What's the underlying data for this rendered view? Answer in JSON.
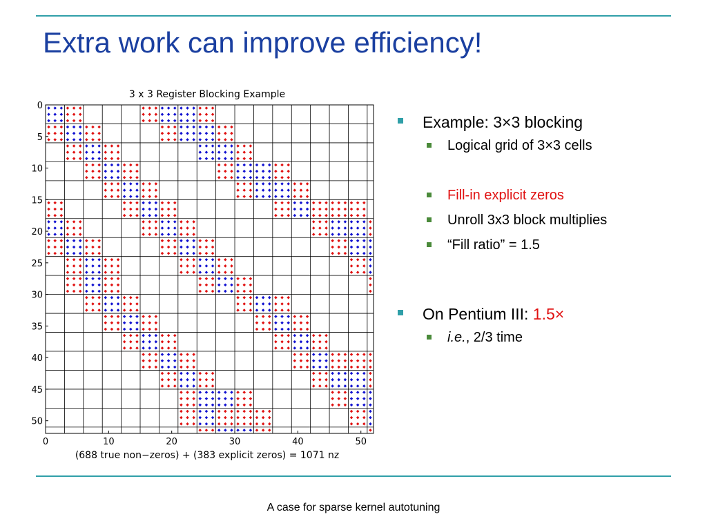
{
  "slide": {
    "title": "Extra work can improve efficiency!",
    "footer": "A case for sparse kernel autotuning"
  },
  "bullets": [
    {
      "text": "Example: 3×3 blocking",
      "sub": [
        {
          "text": "Logical grid of 3×3 cells",
          "color": "#000000"
        },
        {
          "text": "",
          "color": "#000000"
        },
        {
          "text": "Fill-in explicit zeros",
          "color": "#e01010"
        },
        {
          "text": "Unroll 3x3 block multiplies",
          "color": "#000000"
        },
        {
          "text": "“Fill ratio” = 1.5",
          "color": "#000000"
        }
      ]
    },
    {
      "text_before": "On Pentium III: ",
      "highlight": "1.5×",
      "sub_italic": "i.e.",
      "sub_rest": ", 2/3 time"
    }
  ],
  "chart_data": {
    "type": "spy",
    "title": "3 x 3 Register Blocking Example",
    "xlabel": "(688 true non−zeros) + (383 explicit zeros) = 1071 nz",
    "ylabel": "",
    "xlim": [
      0,
      52
    ],
    "ylim": [
      0,
      52
    ],
    "x_ticks": [
      0,
      10,
      20,
      30,
      40,
      50
    ],
    "y_ticks": [
      0,
      5,
      10,
      15,
      20,
      25,
      30,
      35,
      40,
      45,
      50
    ],
    "block_size": 3,
    "colors": {
      "true_nonzero": "#1010d0",
      "explicit_zero": "#e01010"
    },
    "legend_note": "blue dots = true non-zeros, red dots = explicit zeros",
    "block_rows_description": "Each entry is [block_col_start, type] per block row; B=full blue, R=red-filled; values approximate",
    "blocks": [
      [
        [
          0,
          "B"
        ],
        [
          1,
          "R"
        ],
        [
          5,
          "R"
        ],
        [
          6,
          "B"
        ],
        [
          7,
          "B"
        ],
        [
          8,
          "R"
        ]
      ],
      [
        [
          0,
          "R"
        ],
        [
          1,
          "B"
        ],
        [
          2,
          "R"
        ],
        [
          6,
          "R"
        ],
        [
          7,
          "B"
        ],
        [
          8,
          "B"
        ],
        [
          9,
          "R"
        ]
      ],
      [
        [
          1,
          "R"
        ],
        [
          2,
          "B"
        ],
        [
          3,
          "R"
        ],
        [
          8,
          "B"
        ],
        [
          9,
          "B"
        ],
        [
          10,
          "R"
        ]
      ],
      [
        [
          2,
          "R"
        ],
        [
          3,
          "B"
        ],
        [
          4,
          "R"
        ],
        [
          9,
          "R"
        ],
        [
          10,
          "B"
        ],
        [
          11,
          "B"
        ],
        [
          12,
          "R"
        ]
      ],
      [
        [
          3,
          "R"
        ],
        [
          4,
          "B"
        ],
        [
          5,
          "R"
        ],
        [
          10,
          "R"
        ],
        [
          11,
          "B"
        ],
        [
          12,
          "B"
        ],
        [
          13,
          "R"
        ]
      ],
      [
        [
          0,
          "R"
        ],
        [
          4,
          "R"
        ],
        [
          5,
          "B"
        ],
        [
          6,
          "R"
        ],
        [
          12,
          "R"
        ],
        [
          13,
          "B"
        ],
        [
          14,
          "R"
        ],
        [
          15,
          "R"
        ],
        [
          16,
          "R"
        ]
      ],
      [
        [
          0,
          "B"
        ],
        [
          1,
          "R"
        ],
        [
          5,
          "R"
        ],
        [
          6,
          "B"
        ],
        [
          7,
          "R"
        ],
        [
          14,
          "R"
        ],
        [
          15,
          "B"
        ],
        [
          16,
          "B"
        ],
        [
          17,
          "R"
        ]
      ],
      [
        [
          0,
          "R"
        ],
        [
          1,
          "B"
        ],
        [
          2,
          "R"
        ],
        [
          6,
          "R"
        ],
        [
          7,
          "B"
        ],
        [
          8,
          "R"
        ],
        [
          15,
          "R"
        ],
        [
          16,
          "B"
        ],
        [
          17,
          "B"
        ]
      ],
      [
        [
          1,
          "R"
        ],
        [
          2,
          "B"
        ],
        [
          3,
          "R"
        ],
        [
          7,
          "R"
        ],
        [
          8,
          "B"
        ],
        [
          9,
          "R"
        ],
        [
          16,
          "R"
        ],
        [
          17,
          "B"
        ]
      ],
      [
        [
          1,
          "R"
        ],
        [
          2,
          "B"
        ],
        [
          3,
          "R"
        ],
        [
          8,
          "R"
        ],
        [
          9,
          "B"
        ],
        [
          10,
          "R"
        ],
        [
          17,
          "R"
        ]
      ],
      [
        [
          2,
          "R"
        ],
        [
          3,
          "B"
        ],
        [
          4,
          "R"
        ],
        [
          10,
          "R"
        ],
        [
          11,
          "B"
        ],
        [
          12,
          "R"
        ]
      ],
      [
        [
          3,
          "R"
        ],
        [
          4,
          "B"
        ],
        [
          5,
          "R"
        ],
        [
          11,
          "R"
        ],
        [
          12,
          "B"
        ],
        [
          13,
          "R"
        ]
      ],
      [
        [
          4,
          "R"
        ],
        [
          5,
          "B"
        ],
        [
          6,
          "R"
        ],
        [
          12,
          "R"
        ],
        [
          13,
          "B"
        ],
        [
          14,
          "R"
        ]
      ],
      [
        [
          5,
          "R"
        ],
        [
          6,
          "B"
        ],
        [
          7,
          "R"
        ],
        [
          13,
          "R"
        ],
        [
          14,
          "B"
        ],
        [
          15,
          "R"
        ],
        [
          16,
          "R"
        ],
        [
          17,
          "R"
        ]
      ],
      [
        [
          6,
          "R"
        ],
        [
          7,
          "B"
        ],
        [
          8,
          "R"
        ],
        [
          14,
          "R"
        ],
        [
          15,
          "B"
        ],
        [
          16,
          "B"
        ],
        [
          17,
          "R"
        ]
      ],
      [
        [
          7,
          "R"
        ],
        [
          8,
          "B"
        ],
        [
          9,
          "B"
        ],
        [
          10,
          "R"
        ],
        [
          15,
          "R"
        ],
        [
          16,
          "B"
        ],
        [
          17,
          "B"
        ]
      ],
      [
        [
          7,
          "R"
        ],
        [
          8,
          "B"
        ],
        [
          9,
          "R"
        ],
        [
          10,
          "R"
        ],
        [
          11,
          "R"
        ],
        [
          16,
          "R"
        ],
        [
          17,
          "B"
        ]
      ],
      [
        [
          8,
          "R"
        ],
        [
          9,
          "B"
        ],
        [
          10,
          "B"
        ],
        [
          11,
          "R"
        ],
        [
          17,
          "R"
        ]
      ]
    ]
  }
}
